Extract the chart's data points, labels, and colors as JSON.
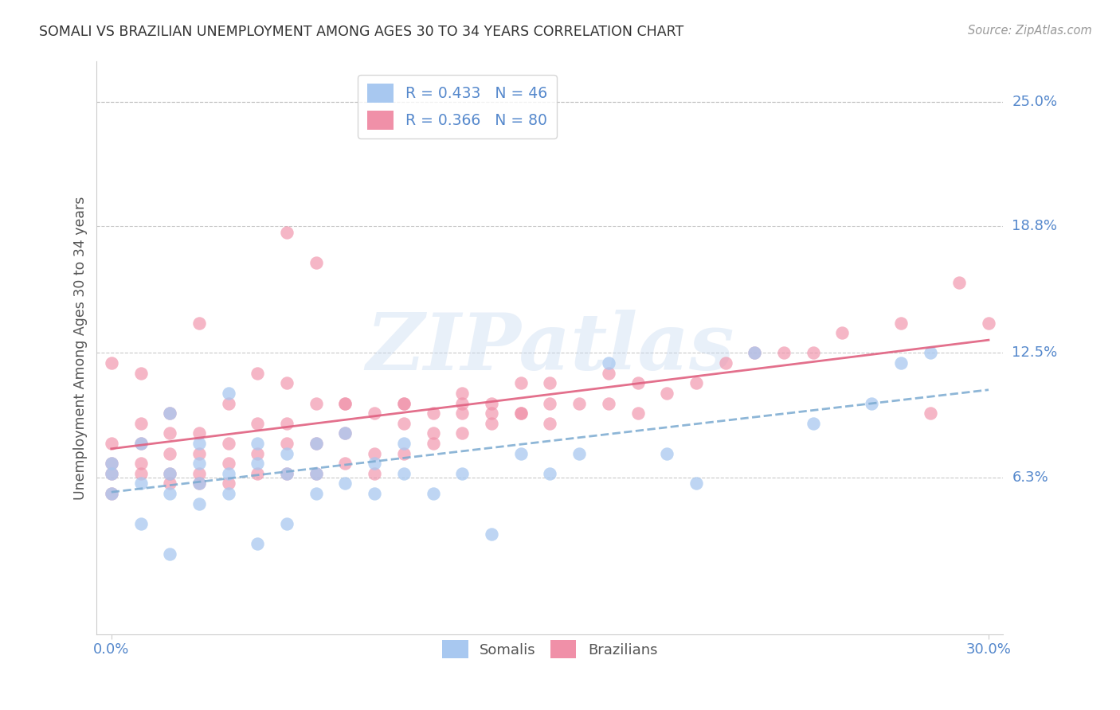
{
  "title": "SOMALI VS BRAZILIAN UNEMPLOYMENT AMONG AGES 30 TO 34 YEARS CORRELATION CHART",
  "source": "Source: ZipAtlas.com",
  "ylabel": "Unemployment Among Ages 30 to 34 years",
  "ytick_labels": [
    "25.0%",
    "18.8%",
    "12.5%",
    "6.3%"
  ],
  "ytick_values": [
    0.25,
    0.188,
    0.125,
    0.063
  ],
  "xlim": [
    0.0,
    0.3
  ],
  "ylim": [
    -0.015,
    0.27
  ],
  "somali_R": 0.433,
  "somali_N": 46,
  "brazilian_R": 0.366,
  "brazilian_N": 80,
  "somali_color": "#a8c8f0",
  "brazilian_color": "#f090a8",
  "somali_line_color": "#7aaad0",
  "brazilian_line_color": "#e06080",
  "background_color": "#ffffff",
  "grid_color": "#bbbbbb",
  "tick_label_color": "#5588cc",
  "watermark": "ZIPatlas",
  "somali_x": [
    0.0,
    0.0,
    0.0,
    0.01,
    0.01,
    0.01,
    0.02,
    0.02,
    0.02,
    0.02,
    0.03,
    0.03,
    0.03,
    0.03,
    0.04,
    0.04,
    0.04,
    0.05,
    0.05,
    0.05,
    0.06,
    0.06,
    0.06,
    0.07,
    0.07,
    0.07,
    0.08,
    0.08,
    0.09,
    0.09,
    0.1,
    0.1,
    0.11,
    0.12,
    0.13,
    0.14,
    0.15,
    0.16,
    0.17,
    0.19,
    0.2,
    0.22,
    0.24,
    0.26,
    0.27,
    0.28
  ],
  "somali_y": [
    0.055,
    0.065,
    0.07,
    0.04,
    0.06,
    0.08,
    0.025,
    0.055,
    0.065,
    0.095,
    0.05,
    0.06,
    0.07,
    0.08,
    0.055,
    0.065,
    0.105,
    0.03,
    0.07,
    0.08,
    0.04,
    0.065,
    0.075,
    0.055,
    0.065,
    0.08,
    0.06,
    0.085,
    0.055,
    0.07,
    0.065,
    0.08,
    0.055,
    0.065,
    0.035,
    0.075,
    0.065,
    0.075,
    0.12,
    0.075,
    0.06,
    0.125,
    0.09,
    0.1,
    0.12,
    0.125
  ],
  "brazilian_x": [
    0.0,
    0.0,
    0.0,
    0.0,
    0.0,
    0.01,
    0.01,
    0.01,
    0.01,
    0.01,
    0.02,
    0.02,
    0.02,
    0.02,
    0.02,
    0.03,
    0.03,
    0.03,
    0.03,
    0.03,
    0.04,
    0.04,
    0.04,
    0.04,
    0.05,
    0.05,
    0.05,
    0.05,
    0.06,
    0.06,
    0.06,
    0.06,
    0.07,
    0.07,
    0.07,
    0.08,
    0.08,
    0.08,
    0.09,
    0.09,
    0.1,
    0.1,
    0.1,
    0.11,
    0.11,
    0.12,
    0.12,
    0.12,
    0.13,
    0.13,
    0.14,
    0.14,
    0.15,
    0.15,
    0.16,
    0.17,
    0.17,
    0.18,
    0.18,
    0.19,
    0.2,
    0.21,
    0.22,
    0.23,
    0.24,
    0.25,
    0.27,
    0.28,
    0.29,
    0.3,
    0.06,
    0.07,
    0.08,
    0.09,
    0.1,
    0.11,
    0.12,
    0.13,
    0.14,
    0.15
  ],
  "brazilian_y": [
    0.055,
    0.065,
    0.07,
    0.08,
    0.12,
    0.065,
    0.07,
    0.08,
    0.09,
    0.115,
    0.06,
    0.065,
    0.075,
    0.085,
    0.095,
    0.06,
    0.065,
    0.075,
    0.085,
    0.14,
    0.06,
    0.07,
    0.08,
    0.1,
    0.065,
    0.075,
    0.09,
    0.115,
    0.065,
    0.08,
    0.09,
    0.11,
    0.065,
    0.08,
    0.1,
    0.07,
    0.085,
    0.1,
    0.075,
    0.095,
    0.075,
    0.09,
    0.1,
    0.08,
    0.095,
    0.085,
    0.095,
    0.105,
    0.09,
    0.1,
    0.095,
    0.11,
    0.09,
    0.1,
    0.1,
    0.1,
    0.115,
    0.095,
    0.11,
    0.105,
    0.11,
    0.12,
    0.125,
    0.125,
    0.125,
    0.135,
    0.14,
    0.095,
    0.16,
    0.14,
    0.185,
    0.17,
    0.1,
    0.065,
    0.1,
    0.085,
    0.1,
    0.095,
    0.095,
    0.11
  ]
}
